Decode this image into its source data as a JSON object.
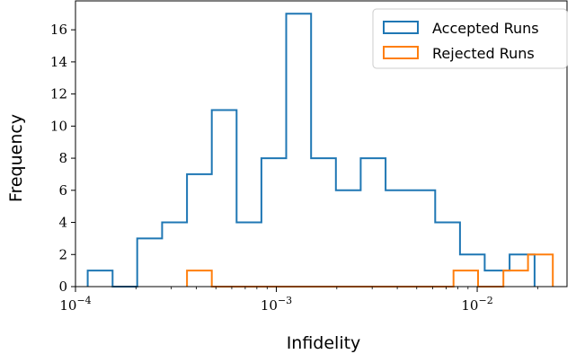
{
  "chart_data": {
    "type": "histogram",
    "x_scale": "log",
    "xlabel": "Infidelity",
    "ylabel": "Frequency",
    "xlim": [
      0.0001,
      0.028
    ],
    "ylim": [
      0,
      17.8
    ],
    "yticks": [
      0,
      2,
      4,
      6,
      8,
      10,
      12,
      14,
      16
    ],
    "xticks": [
      {
        "value": 0.0001,
        "base": "10",
        "exp": "−4"
      },
      {
        "value": 0.001,
        "base": "10",
        "exp": "−3"
      },
      {
        "value": 0.01,
        "base": "10",
        "exp": "−2"
      }
    ],
    "legend_position": "top-right",
    "series": [
      {
        "name": "Accepted Runs",
        "color": "#1f77b4",
        "bin_edges": [
          0.000115,
          0.000153,
          0.000203,
          0.00027,
          0.000359,
          0.000477,
          0.000634,
          0.000843,
          0.00112,
          0.00149,
          0.00198,
          0.00263,
          0.0035,
          0.00465,
          0.00618,
          0.00821,
          0.0109,
          0.0145,
          0.0193
        ],
        "counts": [
          1,
          0,
          3,
          4,
          7,
          11,
          4,
          8,
          17,
          8,
          6,
          8,
          6,
          6,
          4,
          2,
          1,
          2
        ]
      },
      {
        "name": "Rejected Runs",
        "color": "#ff7f0e",
        "bin_edges": [
          0.000359,
          0.000477,
          0.000634,
          0.000843,
          0.00112,
          0.00149,
          0.00198,
          0.00263,
          0.0035,
          0.00465,
          0.00618,
          0.00762,
          0.0101,
          0.0135,
          0.0179,
          0.0238
        ],
        "counts": [
          1,
          0,
          0,
          0,
          0,
          0,
          0,
          0,
          0,
          0,
          0,
          1,
          0,
          1,
          2
        ]
      }
    ]
  }
}
